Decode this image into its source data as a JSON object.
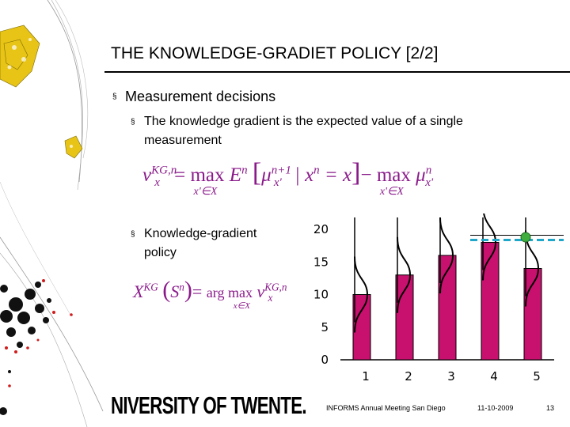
{
  "slide": {
    "title": "THE KNOWLEDGE-GRADIET POLICY [2/2]",
    "bullet1": "Measurement decisions",
    "sub1_line1": "The knowledge gradient is the expected value of a single",
    "sub1_line2": "measurement",
    "sub2_line1": "Knowledge-gradient",
    "sub2_line2": "policy",
    "bullet_glyph": "§"
  },
  "formula1": {
    "lhs": "ν",
    "lhs_sup": "KG,n",
    "lhs_sub": "x",
    "eq": "=",
    "max": "max",
    "max_sub": "x'∈X",
    "E": "E",
    "E_sup": "n",
    "mu": "μ",
    "mu1_sup": "n+1",
    "mu1_sub": "x'",
    "cond": "| x",
    "cond_sup": "n",
    "cond_rest": "= x",
    "minus": "−",
    "max2": "max",
    "max2_sub": "x'∈X",
    "mu2_sup": "n",
    "mu2_sub": "x'"
  },
  "formula2": {
    "lhs": "X",
    "lhs_sup": "KG",
    "arg_open": "(",
    "S": "S",
    "S_sup": "n",
    "arg_close": ")",
    "eq": "=",
    "argmax": "arg max",
    "argmax_sub": "x∈X",
    "nu": "ν",
    "nu_sup": "KG,n",
    "nu_sub": "x"
  },
  "chart_data": {
    "type": "bar",
    "categories": [
      "1",
      "2",
      "3",
      "4",
      "5"
    ],
    "values": [
      10,
      13,
      16,
      18,
      14
    ],
    "ylim": [
      0,
      20
    ],
    "yticks": [
      "0",
      "5",
      "10",
      "15",
      "20"
    ],
    "bar_color": "#c8116e",
    "dashed_line_value": 18,
    "dashed_line_color": "#1ea7c8",
    "marker_color": "#3fae3f",
    "grid": false
  },
  "footer": {
    "university": "NIVERSITY OF TWENTE.",
    "conference": "INFORMS Annual Meeting San Diego",
    "date": "11-10-2009",
    "page": "13"
  }
}
